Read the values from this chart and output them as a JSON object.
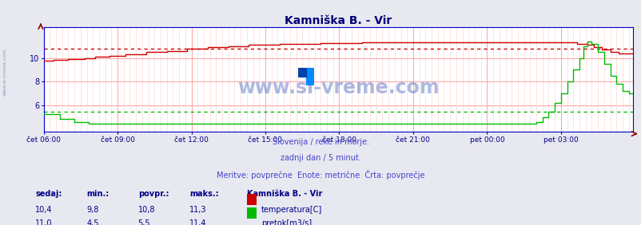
{
  "title": "Kamniška B. - Vir",
  "background_color": "#e8e8f0",
  "plot_bg_color": "#ffffff",
  "grid_color_h": "#ffaaaa",
  "grid_color_v": "#ffcccc",
  "x_labels": [
    "čet 06:00",
    "čet 09:00",
    "čet 12:00",
    "čet 15:00",
    "čet 18:00",
    "čet 21:00",
    "pet 00:00",
    "pet 03:00"
  ],
  "y_ticks": [
    6,
    8,
    10
  ],
  "y_min": 3.8,
  "y_max": 12.6,
  "temp_avg": 10.8,
  "flow_avg": 5.5,
  "temp_color": "#cc0000",
  "flow_color": "#00bb00",
  "subtitle1": "Slovenija / reke in morje.",
  "subtitle2": "zadnji dan / 5 minut.",
  "subtitle3": "Meritve: povprečne  Enote: metrične  Črta: povprečje",
  "subtitle_color": "#4444cc",
  "sedaj_label": "sedaj:",
  "min_label": "min.:",
  "povpr_label": "povpr.:",
  "maks_label": "maks.:",
  "station_label": "Kamniška B. - Vir",
  "temp_label": "temperatura[C]",
  "flow_label": "pretok[m3/s]",
  "temp_sedaj": "10,4",
  "temp_min": "9,8",
  "temp_povpr": "10,8",
  "temp_maks": "11,3",
  "flow_sedaj": "11,0",
  "flow_min": "4,5",
  "flow_povpr": "5,5",
  "flow_maks": "11,4",
  "n_points": 288,
  "x_tick_positions": [
    0,
    36,
    72,
    108,
    144,
    180,
    216,
    252
  ],
  "title_color": "#000077",
  "title_fontsize": 10,
  "tick_label_color": "#000088",
  "watermark": "www.si-vreme.com",
  "watermark_color": "#3355bb",
  "left_watermark_color": "#6688bb",
  "spine_color": "#0000cc",
  "arrow_color": "#880000"
}
